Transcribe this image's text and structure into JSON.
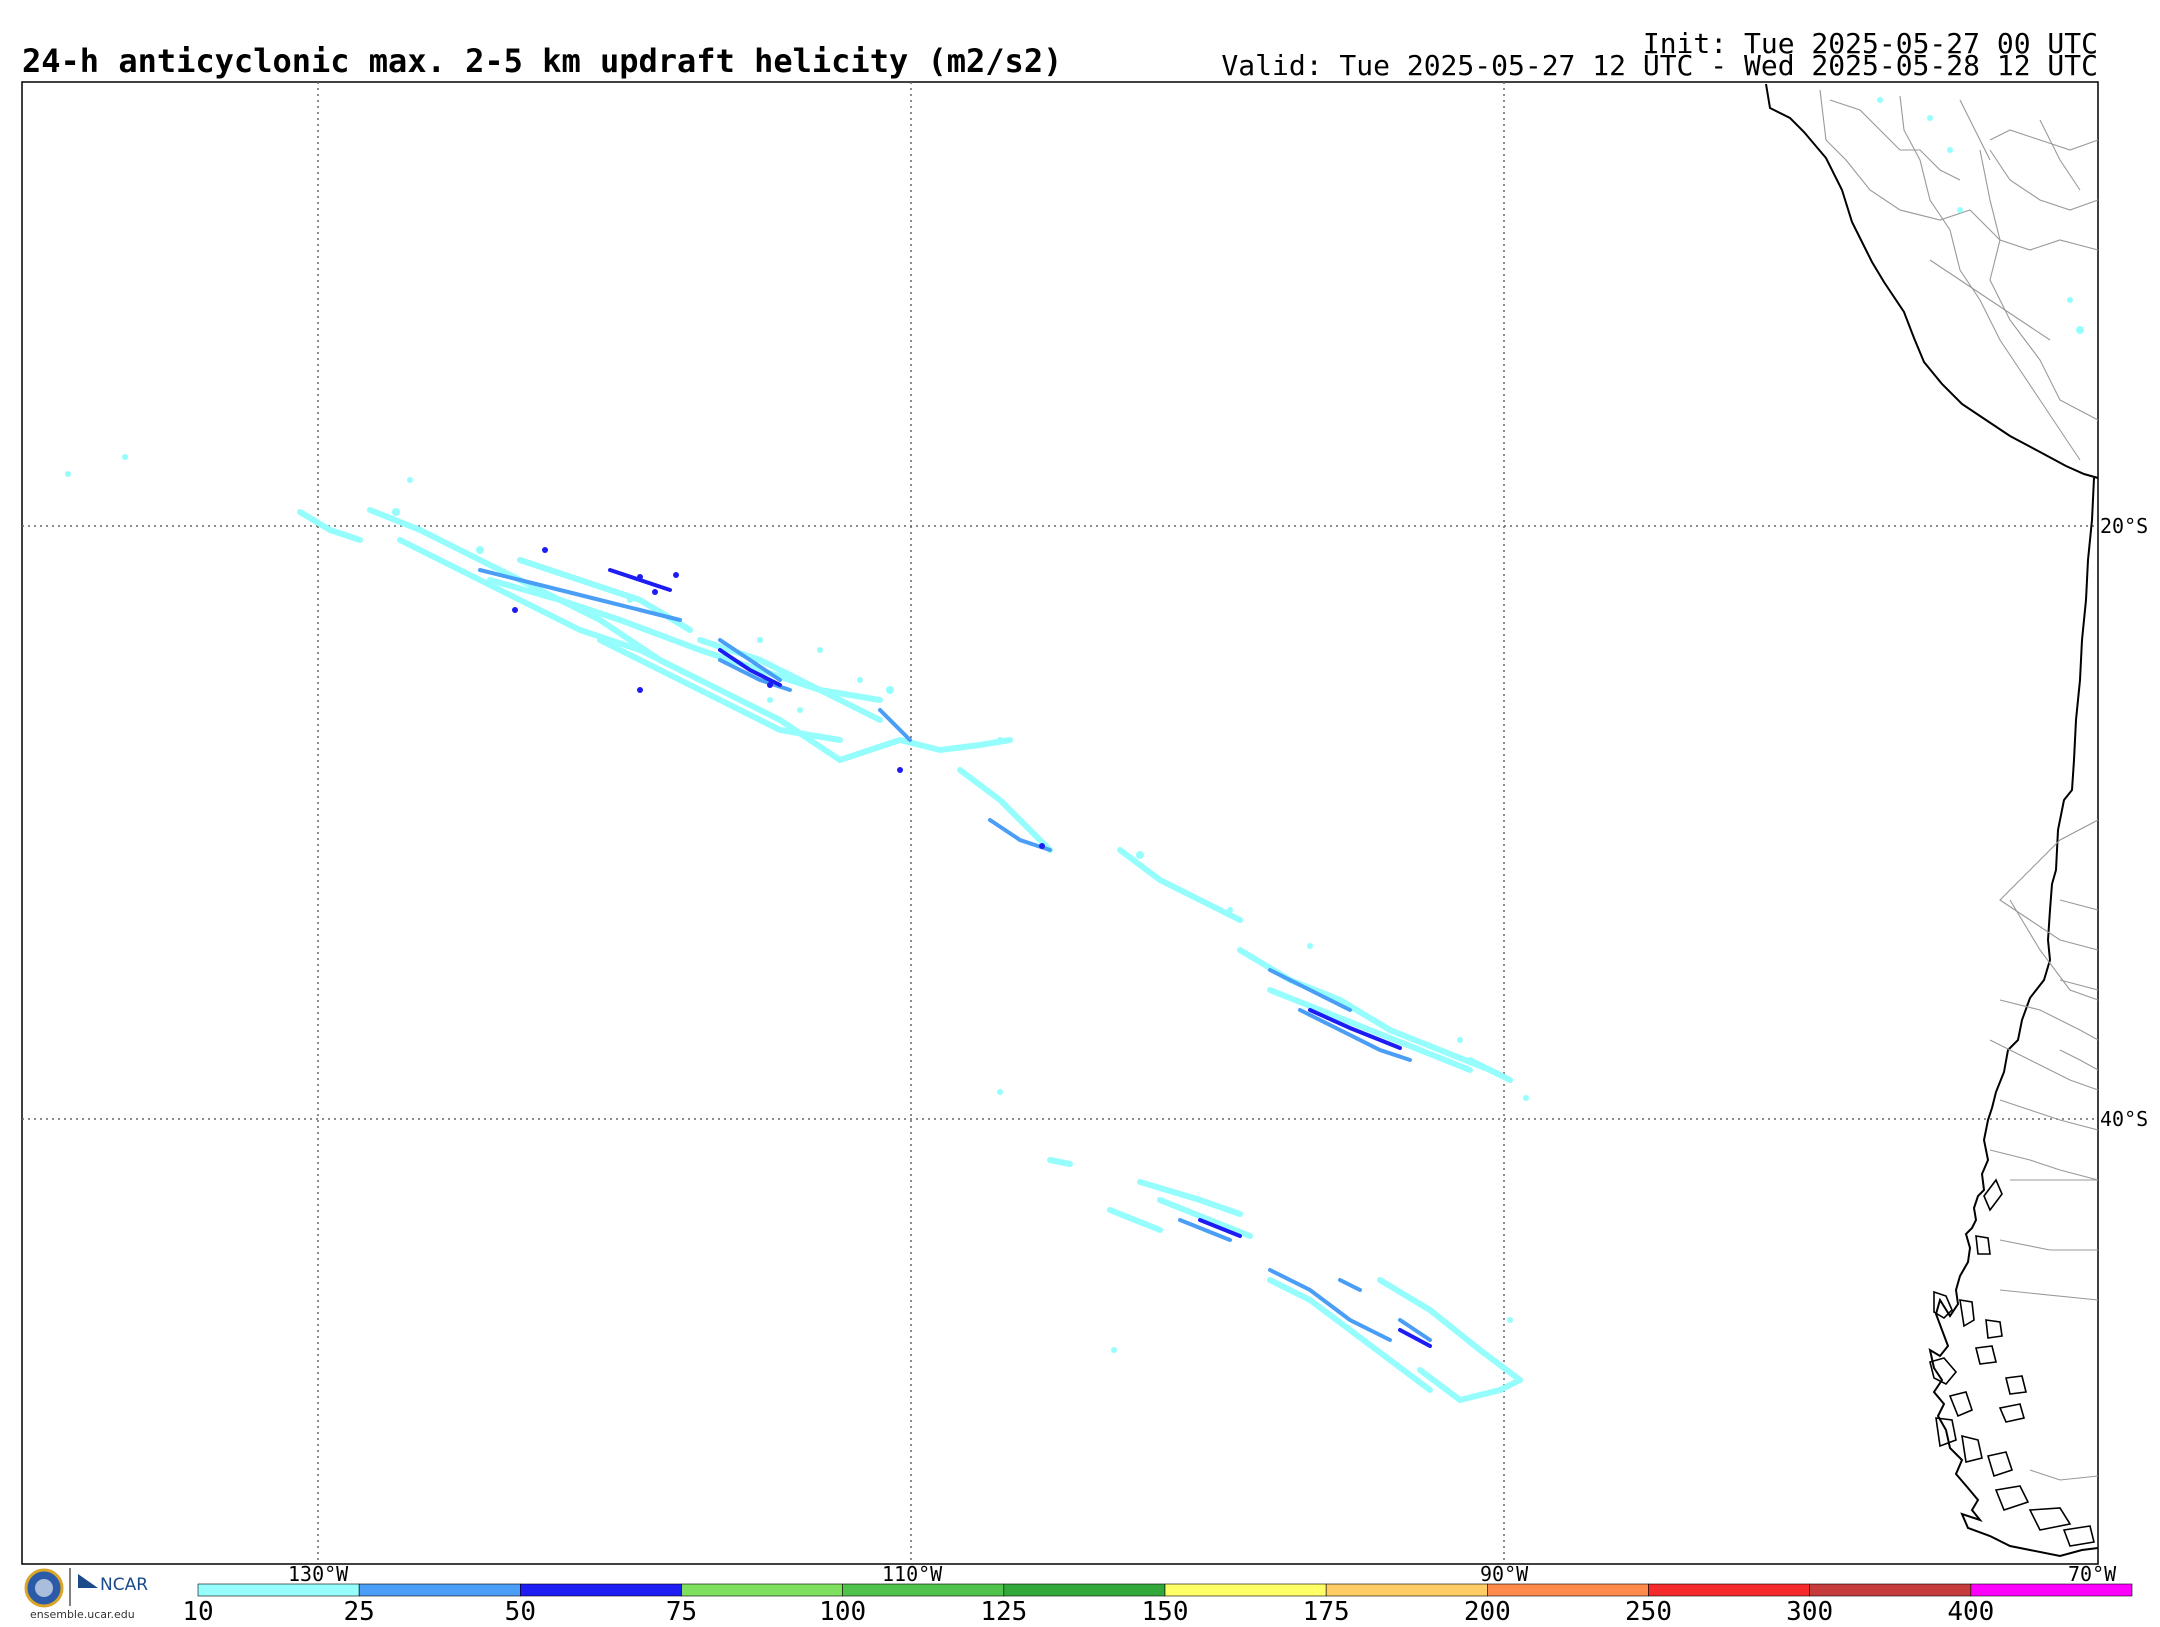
{
  "header": {
    "title": "24-h anticyclonic max. 2-5 km updraft helicity (m2/s2)",
    "init": "Init: Tue 2025-05-27 00 UTC",
    "valid": "Valid: Tue 2025-05-27 12 UTC - Wed 2025-05-28 12 UTC"
  },
  "map": {
    "lat_labels": [
      "20°S",
      "40°S"
    ],
    "lon_labels": [
      "130°W",
      "110°W",
      "90°W",
      "70°W"
    ],
    "gridline_style": "dotted",
    "field_colors": {
      "light": "#96fdfd",
      "medium": "#4a9ef5",
      "dark": "#1d1cf3"
    }
  },
  "colorbar": {
    "ticks": [
      "10",
      "25",
      "50",
      "75",
      "100",
      "125",
      "150",
      "175",
      "200",
      "250",
      "300",
      "400"
    ],
    "colors": [
      "#96fdfd",
      "#4a9ef5",
      "#1d1cf3",
      "#7ee05e",
      "#4ec24a",
      "#33a83a",
      "#ffff66",
      "#ffcc66",
      "#ff8a4a",
      "#f62a2a",
      "#c63c3c",
      "#ff00ff"
    ]
  },
  "footer": {
    "org": "NCAR",
    "url": "ensemble.ucar.edu"
  }
}
